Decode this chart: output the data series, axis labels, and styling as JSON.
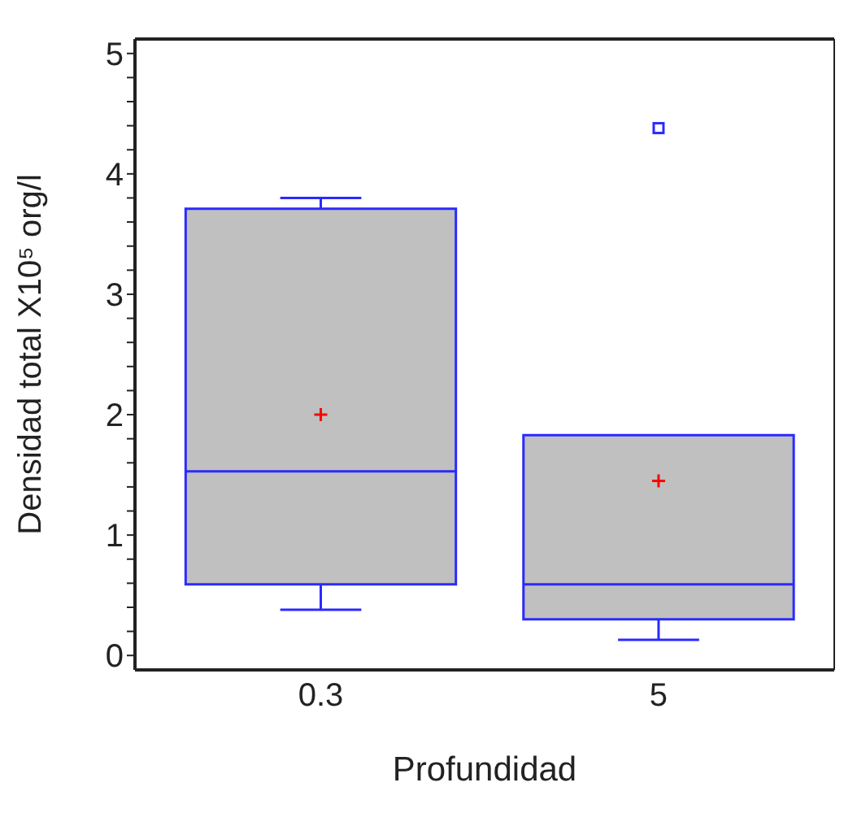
{
  "chart_data": {
    "type": "box",
    "xlabel": "Profundidad",
    "ylabel": "Densidad total   X10⁵ org/l",
    "categories": [
      "0.3",
      "5"
    ],
    "series": [
      {
        "color": "#c0c0c0",
        "boxes": [
          {
            "low": 0.38,
            "q1": 0.59,
            "median": 1.53,
            "q3": 3.71,
            "high": 3.8,
            "mean": 2.0
          },
          {
            "low": 0.13,
            "q1": 0.3,
            "median": 0.59,
            "q3": 1.83,
            "high": 1.83,
            "mean": 1.45,
            "outliers": [
              4.38
            ]
          }
        ]
      }
    ],
    "ylim": [
      -0.12,
      5.12
    ],
    "yticks": [
      0,
      {
        "value": 0.2,
        "label": null
      },
      {
        "value": 0.4,
        "label": null
      },
      {
        "value": 0.6,
        "label": null
      },
      {
        "value": 0.8,
        "label": null
      },
      1,
      {
        "value": 1.2,
        "label": null
      },
      {
        "value": 1.4,
        "label": null
      },
      {
        "value": 1.6,
        "label": null
      },
      {
        "value": 1.8,
        "label": null
      },
      2,
      {
        "value": 2.2,
        "label": null
      },
      {
        "value": 2.4,
        "label": null
      },
      {
        "value": 2.6,
        "label": null
      },
      {
        "value": 2.8,
        "label": null
      },
      3,
      {
        "value": 3.2,
        "label": null
      },
      {
        "value": 3.4,
        "label": null
      },
      {
        "value": 3.6,
        "label": null
      },
      {
        "value": 3.8,
        "label": null
      },
      4,
      {
        "value": 4.2,
        "label": null
      },
      {
        "value": 4.4,
        "label": null
      },
      {
        "value": 4.6,
        "label": null
      },
      {
        "value": 4.8,
        "label": null
      },
      5
    ]
  }
}
